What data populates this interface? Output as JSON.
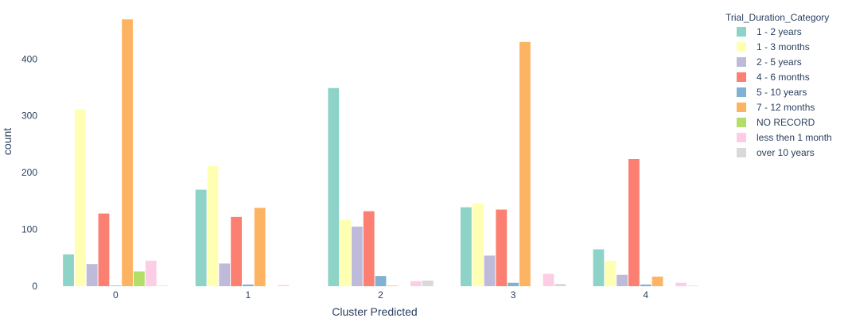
{
  "chart_data": {
    "type": "bar",
    "title": "",
    "xlabel": "Cluster Predicted",
    "ylabel": "count",
    "categories": [
      "0",
      "1",
      "2",
      "3",
      "4"
    ],
    "ylim": [
      0,
      490
    ],
    "yticks": [
      0,
      100,
      200,
      300,
      400
    ],
    "grid": false,
    "legend": {
      "title": "Trial_Duration_Category",
      "placement": "right"
    },
    "series": [
      {
        "name": "1 - 2 years",
        "color": "#8dd3c7",
        "values": [
          56,
          170,
          349,
          139,
          65
        ]
      },
      {
        "name": "1 - 3 months",
        "color": "#ffffb3",
        "values": [
          311,
          212,
          117,
          146,
          45
        ]
      },
      {
        "name": "2 - 5 years",
        "color": "#bebada",
        "values": [
          39,
          40,
          105,
          54,
          20
        ]
      },
      {
        "name": "4 - 6 months",
        "color": "#fb8072",
        "values": [
          128,
          122,
          132,
          135,
          224
        ]
      },
      {
        "name": "5 - 10 years",
        "color": "#80b1d3",
        "values": [
          1,
          3,
          18,
          6,
          3
        ]
      },
      {
        "name": "7 - 12 months",
        "color": "#fdb462",
        "values": [
          470,
          138,
          1,
          430,
          17
        ]
      },
      {
        "name": "NO RECORD",
        "color": "#b3de69",
        "values": [
          26,
          0,
          0,
          0,
          0
        ]
      },
      {
        "name": "less then 1 month",
        "color": "#fccde5",
        "values": [
          45,
          2,
          9,
          22,
          6
        ]
      },
      {
        "name": "over 10 years",
        "color": "#d9d9d9",
        "values": [
          1,
          0,
          10,
          4,
          1
        ]
      }
    ]
  }
}
